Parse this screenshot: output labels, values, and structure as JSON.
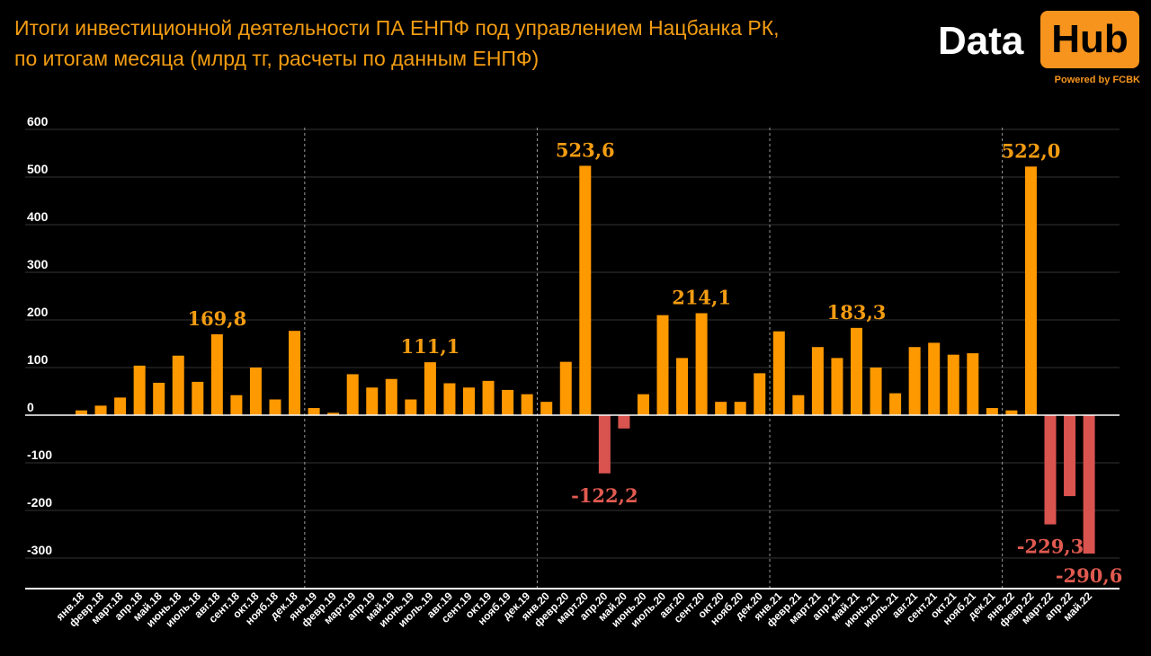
{
  "title_line1": "Итоги инвестиционной деятельности ПА ЕНПФ под управлением Нацбанка РК,",
  "title_line2": "по итогам месяца (млрд тг, расчеты по данным ЕНПФ)",
  "logo": {
    "data": "Data",
    "hub": "Hub",
    "powered": "Powered by FCBK"
  },
  "colors": {
    "positive": "#ff9900",
    "negative": "#d9534f",
    "label_positive": "#f39c12",
    "label_negative": "#e05a50",
    "axis": "#ffffff",
    "grid": "#333333"
  },
  "chart_data": {
    "type": "bar",
    "ylim": [
      -350,
      600
    ],
    "yticks": [
      600,
      500,
      400,
      300,
      200,
      100,
      0,
      -100,
      -200,
      -300
    ],
    "grid": true,
    "categories": [
      "янв.18",
      "февр.18",
      "март.18",
      "апр.18",
      "май.18",
      "июнь.18",
      "июль.18",
      "авг.18",
      "сент.18",
      "окт.18",
      "нояб.18",
      "дек.18",
      "янв.19",
      "февр.19",
      "март.19",
      "апр.19",
      "май.19",
      "июнь.19",
      "июль.19",
      "авг.19",
      "сент.19",
      "окт.19",
      "нояб.19",
      "дек.19",
      "янв.20",
      "февр.20",
      "март.20",
      "апр.20",
      "май.20",
      "июнь.20",
      "июль.20",
      "авг.20",
      "сент.20",
      "окт.20",
      "нояб.20",
      "дек.20",
      "янв.21",
      "февр.21",
      "март.21",
      "апр.21",
      "май.21",
      "июнь.21",
      "июль.21",
      "авг.21",
      "сент.21",
      "окт.21",
      "нояб.21",
      "дек.21",
      "янв.22",
      "февр.22",
      "март.22",
      "апр.22",
      "май.22"
    ],
    "values": [
      10,
      20,
      37,
      104,
      68,
      125,
      70,
      169.8,
      42,
      100,
      33,
      177,
      15,
      5,
      86,
      58,
      76,
      33,
      111.1,
      67,
      58,
      72,
      53,
      44,
      28,
      112,
      523.6,
      -122.2,
      -28,
      44,
      210,
      120,
      214.1,
      28,
      28,
      88,
      176,
      42,
      143,
      120,
      183.3,
      100,
      46,
      143,
      152,
      127,
      130,
      15,
      10,
      522,
      -229.3,
      -170,
      -290.6
    ],
    "data_labels": [
      {
        "index": 7,
        "text": "169,8"
      },
      {
        "index": 18,
        "text": "111,1"
      },
      {
        "index": 26,
        "text": "523,6"
      },
      {
        "index": 27,
        "text": "-122,2"
      },
      {
        "index": 32,
        "text": "214,1"
      },
      {
        "index": 40,
        "text": "183,3"
      },
      {
        "index": 49,
        "text": "522,0"
      },
      {
        "index": 50,
        "text": "-229,3"
      },
      {
        "index": 52,
        "text": "-290,6"
      }
    ],
    "year_separators_after": [
      11,
      23,
      35,
      47
    ]
  }
}
